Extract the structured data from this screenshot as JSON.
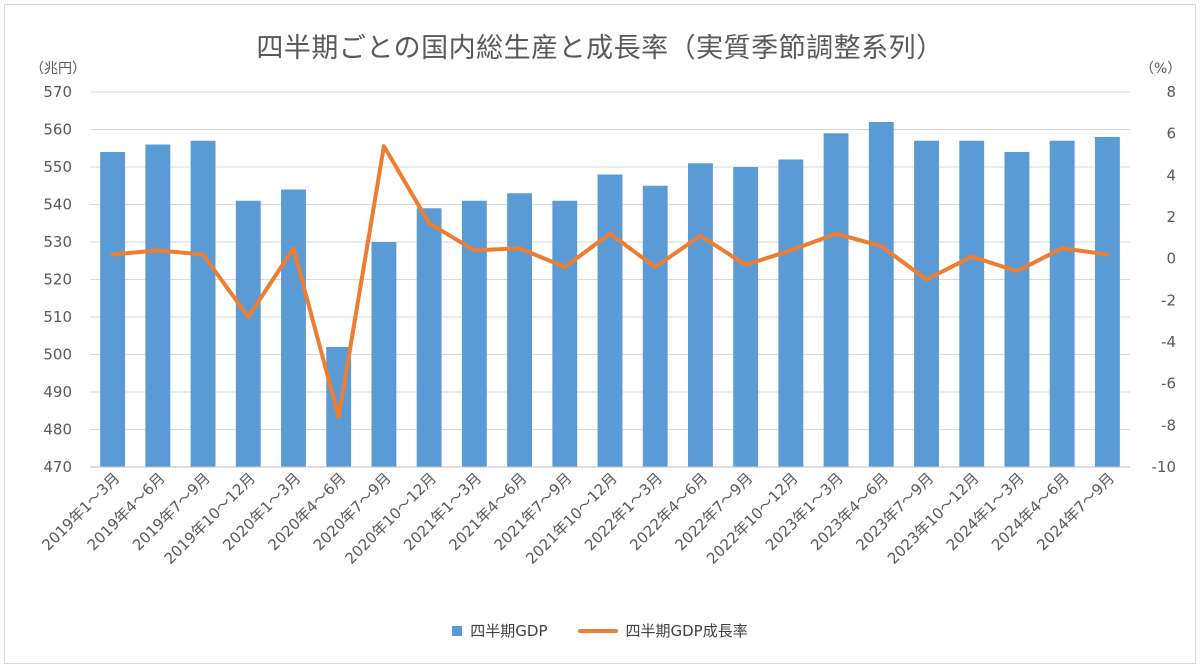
{
  "chart_data": {
    "type": "bar",
    "title": "四半期ごとの国内総生産と成長率（実質季節調整系列）",
    "left_unit": "（兆円）",
    "right_unit": "（%）",
    "categories": [
      "2019年1～3月",
      "2019年4～6月",
      "2019年7～9月",
      "2019年10～12月",
      "2020年1～3月",
      "2020年4～6月",
      "2020年7～9月",
      "2020年10～12月",
      "2021年1～3月",
      "2021年4～6月",
      "2021年7～9月",
      "2021年10～12月",
      "2022年1～3月",
      "2022年4～6月",
      "2022年7～9月",
      "2022年10～12月",
      "2023年1～3月",
      "2023年4～6月",
      "2023年7～9月",
      "2023年10～12月",
      "2024年1～3月",
      "2024年4～6月",
      "2024年7～9月"
    ],
    "series": [
      {
        "name": "四半期GDP",
        "type": "bar",
        "axis": "left",
        "color": "#5b9bd5",
        "values": [
          554,
          556,
          557,
          541,
          544,
          502,
          530,
          539,
          541,
          543,
          541,
          548,
          545,
          551,
          550,
          552,
          559,
          562,
          557,
          557,
          554,
          557,
          558
        ]
      },
      {
        "name": "四半期GDP成長率",
        "type": "line",
        "axis": "right",
        "color": "#ed7d31",
        "values": [
          0.2,
          0.4,
          0.2,
          -2.8,
          0.5,
          -7.6,
          5.4,
          1.7,
          0.4,
          0.5,
          -0.4,
          1.2,
          -0.4,
          1.1,
          -0.3,
          0.4,
          1.2,
          0.6,
          -1.0,
          0.1,
          -0.6,
          0.5,
          0.2
        ]
      }
    ],
    "ylim_left": [
      470,
      570
    ],
    "yticks_left": [
      470,
      480,
      490,
      500,
      510,
      520,
      530,
      540,
      550,
      560,
      570
    ],
    "ylim_right": [
      -10,
      8
    ],
    "yticks_right": [
      -10,
      -8,
      -6,
      -4,
      -2,
      0,
      2,
      4,
      6,
      8
    ],
    "grid": true,
    "legend_position": "bottom"
  }
}
